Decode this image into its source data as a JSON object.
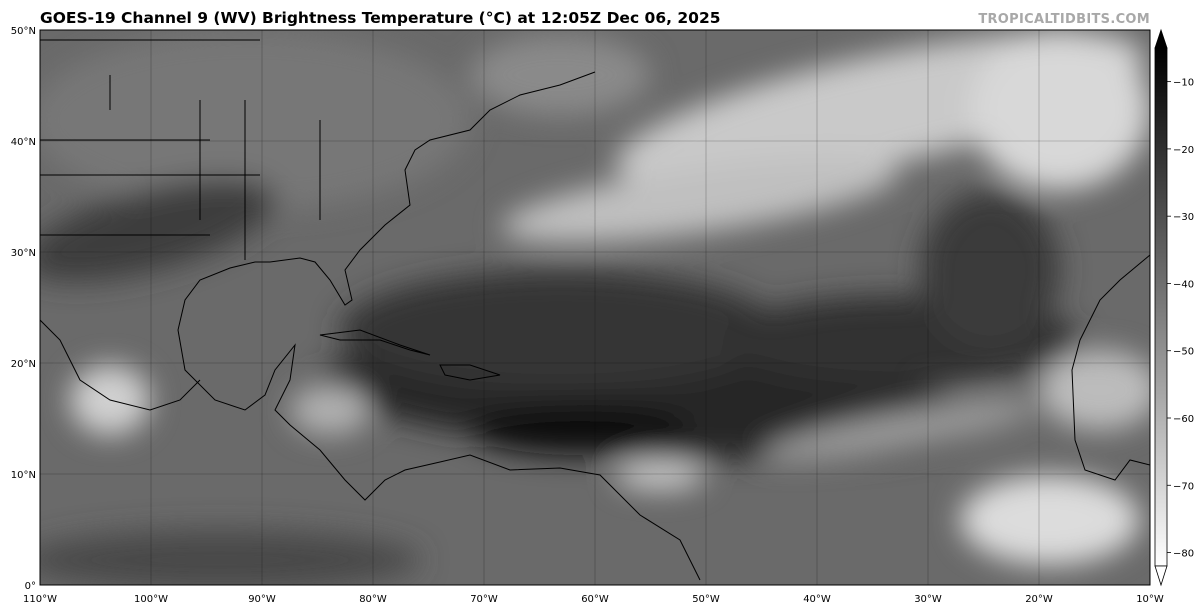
{
  "title": "GOES-19 Channel 9 (WV) Brightness Temperature (°C) at 12:05Z Dec 06, 2025",
  "watermark": "TROPICALTIDBITS.COM",
  "map": {
    "lon_range": [
      -110,
      -10
    ],
    "lat_range": [
      0,
      50
    ],
    "grid": true,
    "lon_labels": [
      "110°W",
      "100°W",
      "90°W",
      "80°W",
      "70°W",
      "60°W",
      "50°W",
      "40°W",
      "30°W",
      "20°W",
      "10°W"
    ],
    "lat_labels": [
      "0°",
      "10°N",
      "20°N",
      "30°N",
      "40°N",
      "50°N"
    ]
  },
  "colorbar": {
    "ticks": [
      "−10",
      "−20",
      "−30",
      "−40",
      "−50",
      "−60",
      "−70",
      "−80"
    ],
    "range": [
      -82,
      -5
    ],
    "colors": {
      "warm": "#000000",
      "cold": "#ffffff"
    },
    "extend": "both"
  }
}
